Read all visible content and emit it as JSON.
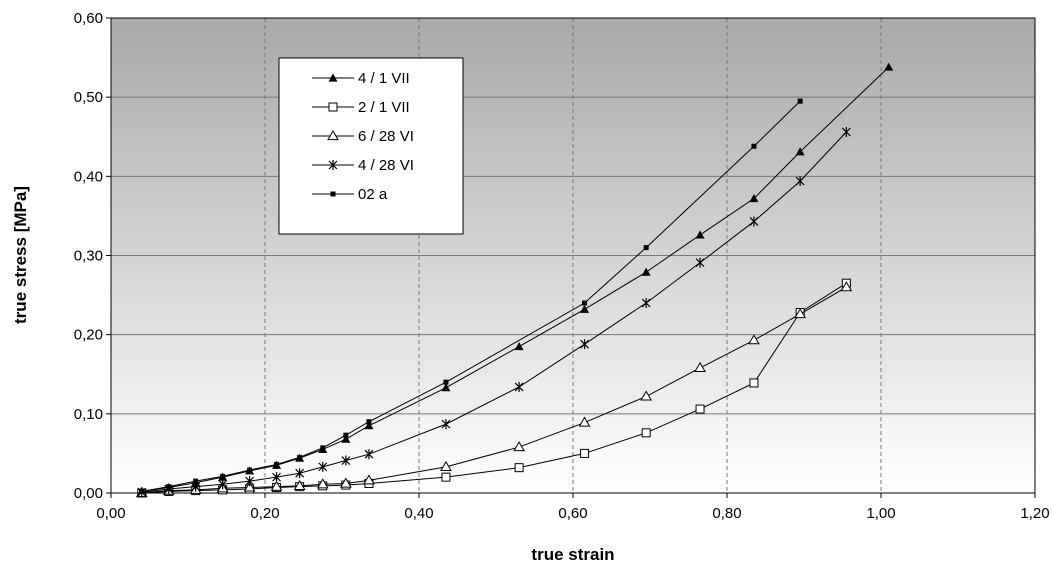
{
  "chart_data": {
    "type": "line",
    "title": "",
    "xlabel": "true strain",
    "ylabel": "true stress [MPa]",
    "xlim": [
      0,
      1.2
    ],
    "ylim": [
      0,
      0.6
    ],
    "x_ticks": [
      "0,00",
      "0,20",
      "0,40",
      "0,60",
      "0,80",
      "1,00",
      "1,20"
    ],
    "y_ticks": [
      "0,00",
      "0,10",
      "0,20",
      "0,30",
      "0,40",
      "0,50",
      "0,60"
    ],
    "grid": "x dashed, y solid",
    "legend_position": "top-left",
    "background": "gradient grey to white",
    "series": [
      {
        "name": "4 / 1 VII",
        "marker": "filled-triangle",
        "points": [
          [
            0.04,
            0.002
          ],
          [
            0.075,
            0.007
          ],
          [
            0.11,
            0.013
          ],
          [
            0.145,
            0.02
          ],
          [
            0.18,
            0.028
          ],
          [
            0.215,
            0.035
          ],
          [
            0.245,
            0.044
          ],
          [
            0.275,
            0.055
          ],
          [
            0.305,
            0.068
          ],
          [
            0.335,
            0.085
          ],
          [
            0.435,
            0.133
          ],
          [
            0.53,
            0.185
          ],
          [
            0.615,
            0.232
          ],
          [
            0.695,
            0.279
          ],
          [
            0.765,
            0.326
          ],
          [
            0.835,
            0.372
          ],
          [
            0.895,
            0.431
          ],
          [
            1.01,
            0.538
          ]
        ]
      },
      {
        "name": "2 / 1 VII",
        "marker": "open-square",
        "points": [
          [
            0.04,
            0.0
          ],
          [
            0.075,
            0.002
          ],
          [
            0.11,
            0.003
          ],
          [
            0.145,
            0.004
          ],
          [
            0.18,
            0.005
          ],
          [
            0.215,
            0.007
          ],
          [
            0.245,
            0.008
          ],
          [
            0.275,
            0.009
          ],
          [
            0.305,
            0.01
          ],
          [
            0.335,
            0.012
          ],
          [
            0.435,
            0.02
          ],
          [
            0.53,
            0.032
          ],
          [
            0.615,
            0.05
          ],
          [
            0.695,
            0.076
          ],
          [
            0.765,
            0.106
          ],
          [
            0.835,
            0.139
          ],
          [
            0.895,
            0.228
          ],
          [
            0.955,
            0.265
          ]
        ]
      },
      {
        "name": "6 / 28 VI",
        "marker": "open-triangle",
        "points": [
          [
            0.04,
            0.0
          ],
          [
            0.075,
            0.003
          ],
          [
            0.11,
            0.004
          ],
          [
            0.145,
            0.006
          ],
          [
            0.18,
            0.007
          ],
          [
            0.215,
            0.008
          ],
          [
            0.245,
            0.009
          ],
          [
            0.275,
            0.011
          ],
          [
            0.305,
            0.012
          ],
          [
            0.335,
            0.016
          ],
          [
            0.435,
            0.033
          ],
          [
            0.53,
            0.058
          ],
          [
            0.615,
            0.089
          ],
          [
            0.695,
            0.122
          ],
          [
            0.765,
            0.158
          ],
          [
            0.835,
            0.193
          ],
          [
            0.895,
            0.226
          ],
          [
            0.955,
            0.26
          ]
        ]
      },
      {
        "name": "4 / 28 VI",
        "marker": "star",
        "points": [
          [
            0.04,
            0.001
          ],
          [
            0.075,
            0.005
          ],
          [
            0.11,
            0.008
          ],
          [
            0.145,
            0.011
          ],
          [
            0.18,
            0.015
          ],
          [
            0.215,
            0.02
          ],
          [
            0.245,
            0.025
          ],
          [
            0.275,
            0.033
          ],
          [
            0.305,
            0.041
          ],
          [
            0.335,
            0.049
          ],
          [
            0.435,
            0.087
          ],
          [
            0.53,
            0.134
          ],
          [
            0.615,
            0.188
          ],
          [
            0.695,
            0.24
          ],
          [
            0.765,
            0.291
          ],
          [
            0.835,
            0.343
          ],
          [
            0.895,
            0.394
          ],
          [
            0.955,
            0.456
          ]
        ]
      },
      {
        "name": "02 a",
        "marker": "filled-square",
        "points": [
          [
            0.04,
            0.002
          ],
          [
            0.075,
            0.008
          ],
          [
            0.11,
            0.015
          ],
          [
            0.145,
            0.021
          ],
          [
            0.18,
            0.029
          ],
          [
            0.215,
            0.036
          ],
          [
            0.245,
            0.045
          ],
          [
            0.275,
            0.057
          ],
          [
            0.305,
            0.073
          ],
          [
            0.335,
            0.09
          ],
          [
            0.435,
            0.14
          ],
          [
            0.615,
            0.24
          ],
          [
            0.695,
            0.31
          ],
          [
            0.835,
            0.438
          ],
          [
            0.895,
            0.495
          ]
        ]
      }
    ]
  }
}
